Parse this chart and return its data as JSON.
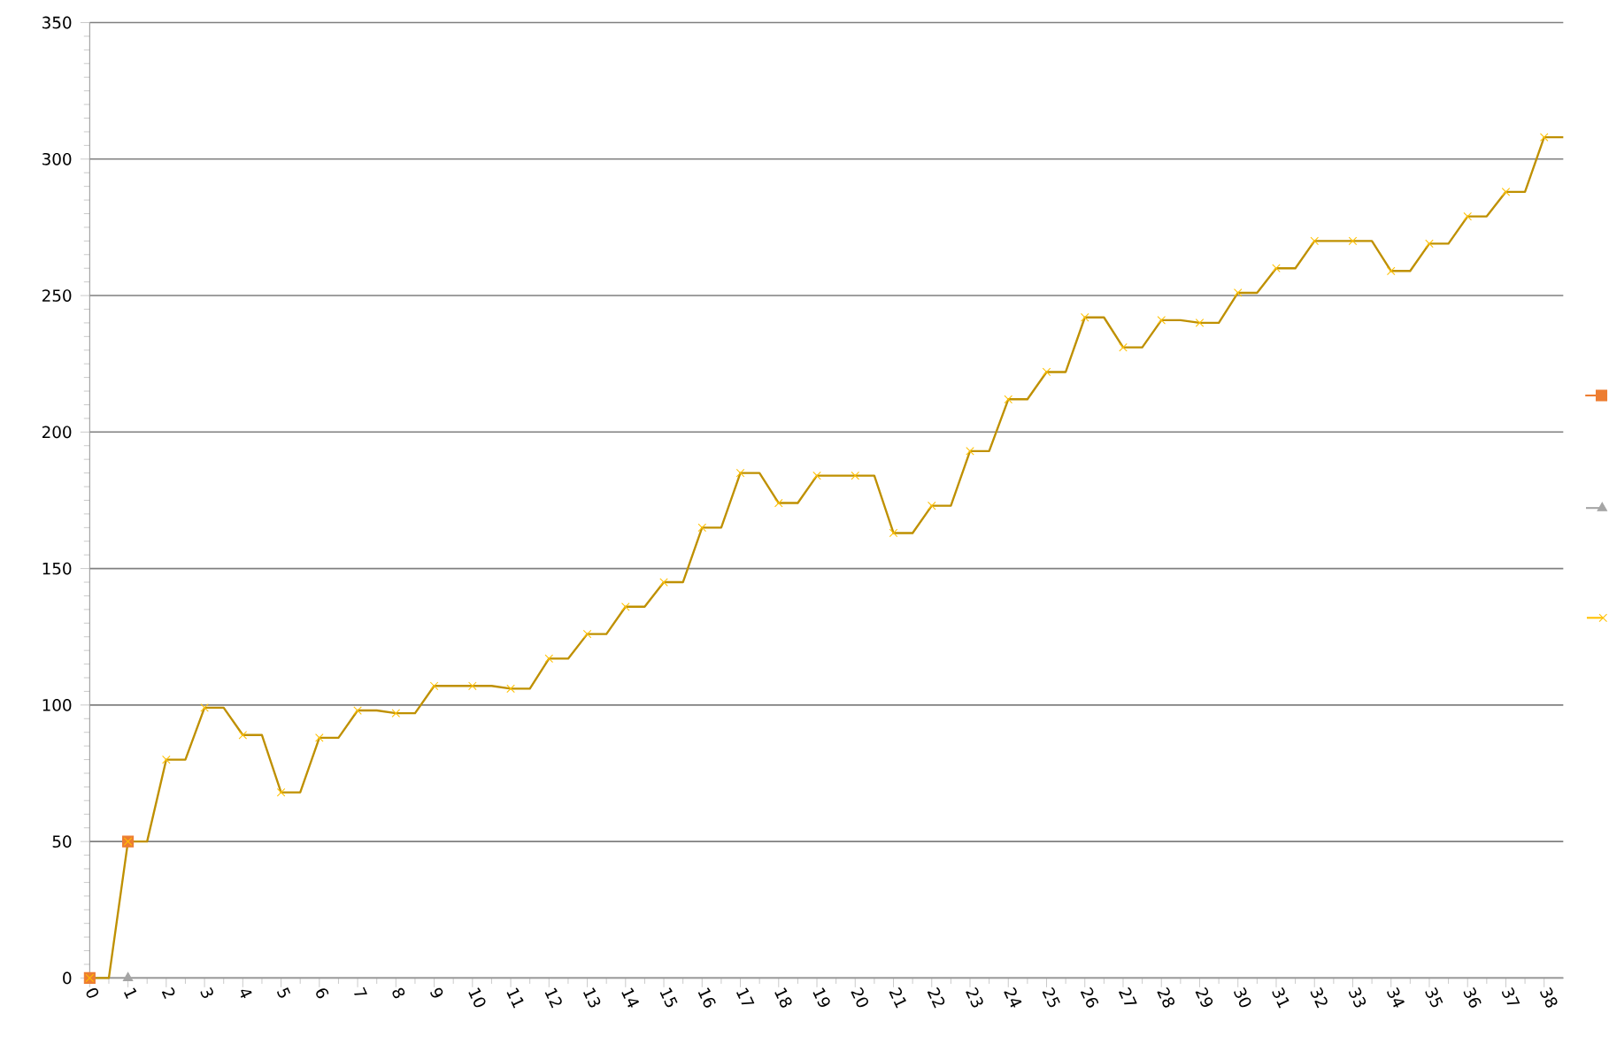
{
  "chart_data": {
    "type": "scatter",
    "x": [
      0,
      1,
      2,
      3,
      4,
      5,
      6,
      7,
      8,
      9,
      10,
      11,
      12,
      13,
      14,
      15,
      16,
      17,
      18,
      19,
      20,
      21,
      22,
      23,
      24,
      25,
      26,
      27,
      28,
      29,
      30,
      31,
      32,
      33,
      34,
      35,
      36,
      37,
      38
    ],
    "series": [
      {
        "type": "line",
        "color": "#bf9000",
        "x": [
          0,
          0.5,
          1,
          1.5,
          2,
          2.5,
          3,
          3.5,
          4,
          4.5,
          5,
          5.5,
          6,
          6.5,
          7,
          7.5,
          8,
          8.5,
          9,
          9.5,
          10,
          10.5,
          11,
          11.5,
          12,
          12.5,
          13,
          13.5,
          14,
          14.5,
          15,
          15.5,
          16,
          16.5,
          17,
          17.5,
          18,
          18.5,
          19,
          19.5,
          20,
          20.5,
          21,
          21.5,
          22,
          22.5,
          23,
          23.5,
          24,
          24.5,
          25,
          25.5,
          26,
          26.5,
          27,
          27.5,
          28,
          28.5,
          29,
          29.5,
          30,
          30.5,
          31,
          31.5,
          32,
          32.5,
          33,
          33.5,
          34,
          34.5,
          35,
          35.5,
          36,
          36.5,
          37,
          37.5,
          38,
          38.5
        ],
        "values": [
          0,
          0,
          50,
          50,
          80,
          80,
          99,
          99,
          89,
          89,
          68,
          68,
          88,
          88,
          98,
          98,
          97,
          97,
          107,
          107,
          107,
          107,
          106,
          106,
          117,
          117,
          126,
          126,
          136,
          136,
          145,
          145,
          165,
          165,
          185,
          185,
          174,
          174,
          184,
          184,
          184,
          184,
          163,
          163,
          173,
          173,
          193,
          193,
          212,
          212,
          222,
          222,
          242,
          242,
          231,
          231,
          241,
          241,
          240,
          240,
          251,
          251,
          260,
          260,
          270,
          270,
          270,
          270,
          259,
          259,
          269,
          269,
          279,
          279,
          288,
          288,
          308,
          308
        ]
      },
      {
        "type": "scatter",
        "marker": "square",
        "color": "#ed7d31",
        "x": [
          0,
          1
        ],
        "values": [
          0,
          50
        ]
      },
      {
        "type": "scatter",
        "marker": "triangle",
        "color": "#a5a5a5",
        "x": [
          1
        ],
        "values": [
          0
        ]
      },
      {
        "marker": "cross",
        "color": "#ffc000",
        "values": [
          0,
          50,
          80,
          99,
          89,
          68,
          88,
          98,
          97,
          107,
          107,
          106,
          117,
          126,
          136,
          145,
          165,
          185,
          174,
          184,
          184,
          163,
          173,
          193,
          212,
          222,
          242,
          231,
          241,
          240,
          251,
          260,
          270,
          270,
          259,
          269,
          279,
          288,
          308
        ]
      }
    ],
    "xlim": [
      0,
      38.5
    ],
    "ylim": [
      0,
      350
    ],
    "xticks": [
      0,
      1,
      2,
      3,
      4,
      5,
      6,
      7,
      8,
      9,
      10,
      11,
      12,
      13,
      14,
      15,
      16,
      17,
      18,
      19,
      20,
      21,
      22,
      23,
      24,
      25,
      26,
      27,
      28,
      29,
      30,
      31,
      32,
      33,
      34,
      35,
      36,
      37,
      38
    ],
    "yticks": [
      0,
      50,
      100,
      150,
      200,
      250,
      300,
      350
    ],
    "grid": "y"
  }
}
